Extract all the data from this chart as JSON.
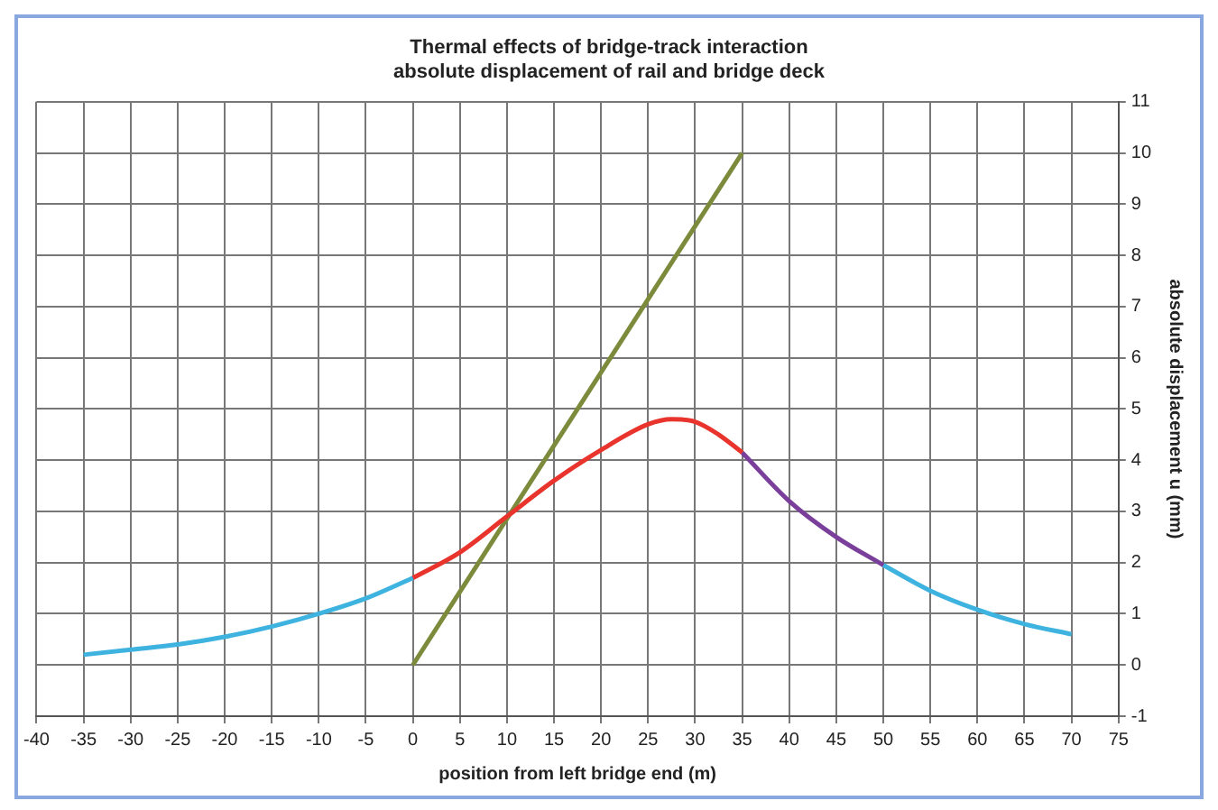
{
  "chart_data": {
    "type": "line",
    "title": "Thermal effects of bridge-track interaction\nabsolute displacement of rail and bridge deck",
    "xlabel": "position from left bridge end (m)",
    "ylabel": "absolute displacement u (mm)",
    "series": [
      {
        "color": "#3fb3e0",
        "x": [
          -35,
          -30,
          -25,
          -20,
          -15,
          -10,
          -5,
          0
        ],
        "values": [
          0.2,
          0.3,
          0.4,
          0.55,
          0.75,
          1.0,
          1.3,
          1.7
        ]
      },
      {
        "color": "#e8342c",
        "x": [
          0,
          5,
          10,
          15,
          20,
          25,
          27.5,
          30,
          32.5,
          35
        ],
        "values": [
          1.7,
          2.2,
          2.9,
          3.6,
          4.2,
          4.7,
          4.8,
          4.75,
          4.5,
          4.15
        ]
      },
      {
        "color": "#7a3f9a",
        "x": [
          35,
          40,
          45,
          50
        ],
        "values": [
          4.15,
          3.2,
          2.5,
          1.95
        ]
      },
      {
        "color": "#3fb3e0",
        "x": [
          50,
          55,
          60,
          65,
          70
        ],
        "values": [
          1.95,
          1.45,
          1.08,
          0.8,
          0.6
        ]
      },
      {
        "color": "#7c8a3c",
        "x": [
          0,
          35
        ],
        "values": [
          0,
          10
        ]
      }
    ],
    "xlim": [
      -40,
      75
    ],
    "xticks": [
      -40,
      -35,
      -30,
      -25,
      -20,
      -15,
      -10,
      -5,
      0,
      5,
      10,
      15,
      20,
      25,
      30,
      35,
      40,
      45,
      50,
      55,
      60,
      65,
      70,
      75
    ],
    "ylim": [
      -1,
      11
    ],
    "yticks": [
      -1,
      0,
      1,
      2,
      3,
      4,
      5,
      6,
      7,
      8,
      9,
      10,
      11
    ],
    "grid": true,
    "marker": "none",
    "line_style": "solid",
    "legend": false
  }
}
